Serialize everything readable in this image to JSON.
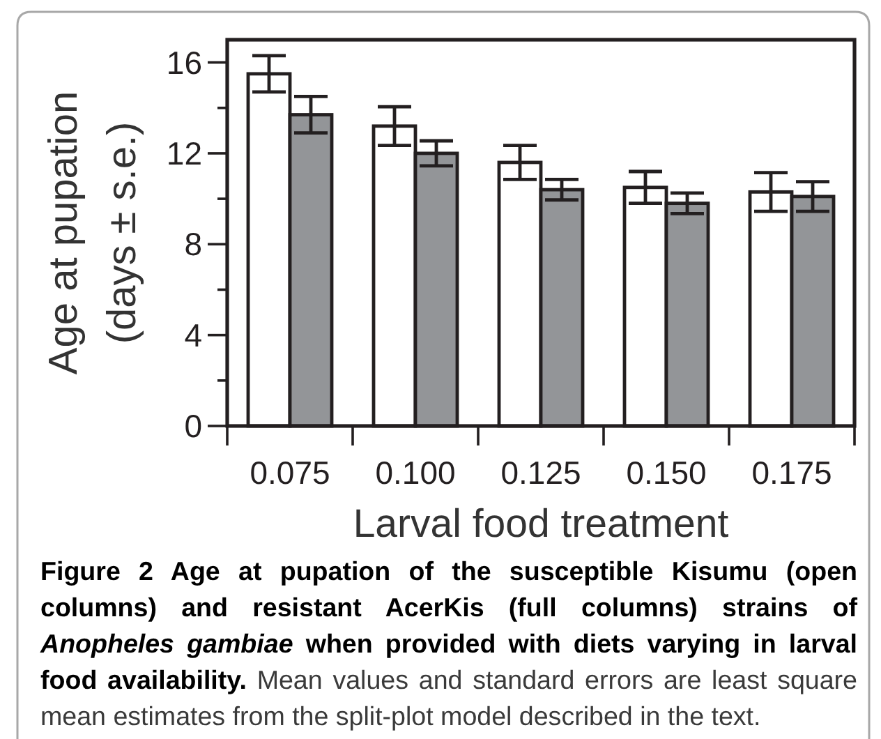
{
  "chart_data": {
    "type": "bar",
    "xlabel": "Larval food treatment",
    "ylabel": "Age at pupation\n(days ± s.e.)",
    "categories": [
      "0.075",
      "0.100",
      "0.125",
      "0.150",
      "0.175"
    ],
    "series": [
      {
        "color": "#ffffff",
        "values": [
          15.5,
          13.2,
          11.6,
          10.5,
          10.3
        ],
        "errors": [
          0.8,
          0.85,
          0.75,
          0.7,
          0.85
        ]
      },
      {
        "color": "#939598",
        "values": [
          13.7,
          12.0,
          10.4,
          9.8,
          10.1
        ],
        "errors": [
          0.8,
          0.55,
          0.45,
          0.45,
          0.65
        ]
      }
    ],
    "ylim": [
      0,
      17
    ],
    "yticks": [
      0,
      {
        "value": 2,
        "label": null
      },
      4,
      {
        "value": 6,
        "label": null
      },
      8,
      {
        "value": 10,
        "label": null
      },
      12,
      {
        "value": 14,
        "label": null
      },
      16
    ],
    "annotations": [
      "Figure 2 Age at pupation of the susceptible Kisumu (open",
      "columns) and resistant AcerKis (full columns) strains of",
      "Anopheles gambiae",
      "when provided with diets varying in larval",
      "food availability.",
      "Mean values and standard errors are least square",
      "mean estimates from the split-plot model described in the text."
    ]
  }
}
